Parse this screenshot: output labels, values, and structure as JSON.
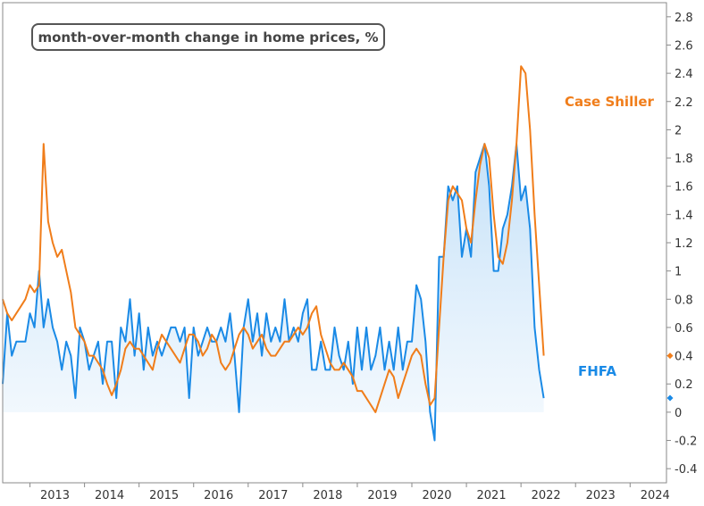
{
  "chart_data": {
    "type": "line",
    "title": "month-over-month change in home prices, %",
    "xlabel": "",
    "ylabel": "",
    "x_ticks": [
      "2013",
      "2014",
      "2015",
      "2016",
      "2017",
      "2018",
      "2019",
      "2020",
      "2021",
      "2022",
      "2023",
      "2024"
    ],
    "y_ticks": [
      "2.8",
      "2.6",
      "2.4",
      "2.2",
      "2",
      "1.8",
      "1.6",
      "1.4",
      "1.2",
      "1",
      "0.8",
      "0.6",
      "0.4",
      "0.2",
      "0",
      "-0.2",
      "-0.4"
    ],
    "xlim": [
      "2012-07",
      "2024-09"
    ],
    "ylim": [
      -0.5,
      2.9
    ],
    "grid": false,
    "series": [
      {
        "name": "Case Shiller",
        "color": "#f07d1a",
        "last_value_marker": 0.4,
        "points": [
          [
            "2012-07",
            0.8
          ],
          [
            "2012-08",
            0.7
          ],
          [
            "2012-09",
            0.65
          ],
          [
            "2012-10",
            0.7
          ],
          [
            "2012-11",
            0.75
          ],
          [
            "2012-12",
            0.8
          ],
          [
            "2013-01",
            0.9
          ],
          [
            "2013-02",
            0.85
          ],
          [
            "2013-03",
            0.9
          ],
          [
            "2013-04",
            1.9
          ],
          [
            "2013-05",
            1.35
          ],
          [
            "2013-06",
            1.2
          ],
          [
            "2013-07",
            1.1
          ],
          [
            "2013-08",
            1.15
          ],
          [
            "2013-09",
            1.0
          ],
          [
            "2013-10",
            0.85
          ],
          [
            "2013-11",
            0.6
          ],
          [
            "2013-12",
            0.55
          ],
          [
            "2014-01",
            0.5
          ],
          [
            "2014-02",
            0.4
          ],
          [
            "2014-03",
            0.4
          ],
          [
            "2014-04",
            0.35
          ],
          [
            "2014-05",
            0.3
          ],
          [
            "2014-06",
            0.2
          ],
          [
            "2014-07",
            0.12
          ],
          [
            "2014-08",
            0.2
          ],
          [
            "2014-09",
            0.3
          ],
          [
            "2014-10",
            0.45
          ],
          [
            "2014-11",
            0.5
          ],
          [
            "2014-12",
            0.45
          ],
          [
            "2015-01",
            0.45
          ],
          [
            "2015-02",
            0.4
          ],
          [
            "2015-03",
            0.35
          ],
          [
            "2015-04",
            0.3
          ],
          [
            "2015-05",
            0.45
          ],
          [
            "2015-06",
            0.55
          ],
          [
            "2015-07",
            0.5
          ],
          [
            "2015-08",
            0.45
          ],
          [
            "2015-09",
            0.4
          ],
          [
            "2015-10",
            0.35
          ],
          [
            "2015-11",
            0.45
          ],
          [
            "2015-12",
            0.55
          ],
          [
            "2016-01",
            0.55
          ],
          [
            "2016-02",
            0.5
          ],
          [
            "2016-03",
            0.4
          ],
          [
            "2016-04",
            0.45
          ],
          [
            "2016-05",
            0.55
          ],
          [
            "2016-06",
            0.5
          ],
          [
            "2016-07",
            0.35
          ],
          [
            "2016-08",
            0.3
          ],
          [
            "2016-09",
            0.35
          ],
          [
            "2016-10",
            0.45
          ],
          [
            "2016-11",
            0.55
          ],
          [
            "2016-12",
            0.6
          ],
          [
            "2017-01",
            0.55
          ],
          [
            "2017-02",
            0.45
          ],
          [
            "2017-03",
            0.5
          ],
          [
            "2017-04",
            0.55
          ],
          [
            "2017-05",
            0.45
          ],
          [
            "2017-06",
            0.4
          ],
          [
            "2017-07",
            0.4
          ],
          [
            "2017-08",
            0.45
          ],
          [
            "2017-09",
            0.5
          ],
          [
            "2017-10",
            0.5
          ],
          [
            "2017-11",
            0.55
          ],
          [
            "2017-12",
            0.6
          ],
          [
            "2018-01",
            0.55
          ],
          [
            "2018-02",
            0.6
          ],
          [
            "2018-03",
            0.7
          ],
          [
            "2018-04",
            0.75
          ],
          [
            "2018-05",
            0.55
          ],
          [
            "2018-06",
            0.45
          ],
          [
            "2018-07",
            0.35
          ],
          [
            "2018-08",
            0.3
          ],
          [
            "2018-09",
            0.3
          ],
          [
            "2018-10",
            0.35
          ],
          [
            "2018-11",
            0.3
          ],
          [
            "2018-12",
            0.25
          ],
          [
            "2019-01",
            0.15
          ],
          [
            "2019-02",
            0.15
          ],
          [
            "2019-03",
            0.1
          ],
          [
            "2019-04",
            0.05
          ],
          [
            "2019-05",
            0.0
          ],
          [
            "2019-06",
            0.1
          ],
          [
            "2019-07",
            0.2
          ],
          [
            "2019-08",
            0.3
          ],
          [
            "2019-09",
            0.25
          ],
          [
            "2019-10",
            0.1
          ],
          [
            "2019-11",
            0.2
          ],
          [
            "2019-12",
            0.3
          ],
          [
            "2020-01",
            0.4
          ],
          [
            "2020-02",
            0.45
          ],
          [
            "2020-03",
            0.4
          ],
          [
            "2020-04",
            0.2
          ],
          [
            "2020-05",
            0.05
          ],
          [
            "2020-06",
            0.1
          ],
          [
            "2020-07",
            0.6
          ],
          [
            "2020-08",
            1.1
          ],
          [
            "2020-09",
            1.5
          ],
          [
            "2020-10",
            1.6
          ],
          [
            "2020-11",
            1.55
          ],
          [
            "2020-12",
            1.5
          ],
          [
            "2021-01",
            1.3
          ],
          [
            "2021-02",
            1.2
          ],
          [
            "2021-03",
            1.5
          ],
          [
            "2021-04",
            1.75
          ],
          [
            "2021-05",
            1.9
          ],
          [
            "2021-06",
            1.8
          ],
          [
            "2021-07",
            1.4
          ],
          [
            "2021-08",
            1.1
          ],
          [
            "2021-09",
            1.05
          ],
          [
            "2021-10",
            1.2
          ],
          [
            "2021-11",
            1.5
          ],
          [
            "2021-12",
            1.9
          ],
          [
            "2022-01",
            2.45
          ],
          [
            "2022-02",
            2.4
          ],
          [
            "2022-03",
            2.0
          ],
          [
            "2022-04",
            1.4
          ],
          [
            "2022-05",
            0.9
          ],
          [
            "2022-06",
            0.4
          ]
        ]
      },
      {
        "name": "FHFA",
        "color": "#1a8ae6",
        "last_value_marker": 0.1,
        "points": [
          [
            "2012-07",
            0.2
          ],
          [
            "2012-08",
            0.7
          ],
          [
            "2012-09",
            0.4
          ],
          [
            "2012-10",
            0.5
          ],
          [
            "2012-11",
            0.5
          ],
          [
            "2012-12",
            0.5
          ],
          [
            "2013-01",
            0.7
          ],
          [
            "2013-02",
            0.6
          ],
          [
            "2013-03",
            1.0
          ],
          [
            "2013-04",
            0.6
          ],
          [
            "2013-05",
            0.8
          ],
          [
            "2013-06",
            0.6
          ],
          [
            "2013-07",
            0.5
          ],
          [
            "2013-08",
            0.3
          ],
          [
            "2013-09",
            0.5
          ],
          [
            "2013-10",
            0.4
          ],
          [
            "2013-11",
            0.1
          ],
          [
            "2013-12",
            0.6
          ],
          [
            "2014-01",
            0.5
          ],
          [
            "2014-02",
            0.3
          ],
          [
            "2014-03",
            0.4
          ],
          [
            "2014-04",
            0.5
          ],
          [
            "2014-05",
            0.2
          ],
          [
            "2014-06",
            0.5
          ],
          [
            "2014-07",
            0.5
          ],
          [
            "2014-08",
            0.1
          ],
          [
            "2014-09",
            0.6
          ],
          [
            "2014-10",
            0.5
          ],
          [
            "2014-11",
            0.8
          ],
          [
            "2014-12",
            0.4
          ],
          [
            "2015-01",
            0.7
          ],
          [
            "2015-02",
            0.3
          ],
          [
            "2015-03",
            0.6
          ],
          [
            "2015-04",
            0.4
          ],
          [
            "2015-05",
            0.5
          ],
          [
            "2015-06",
            0.4
          ],
          [
            "2015-07",
            0.5
          ],
          [
            "2015-08",
            0.6
          ],
          [
            "2015-09",
            0.6
          ],
          [
            "2015-10",
            0.5
          ],
          [
            "2015-11",
            0.6
          ],
          [
            "2015-12",
            0.1
          ],
          [
            "2016-01",
            0.6
          ],
          [
            "2016-02",
            0.4
          ],
          [
            "2016-03",
            0.5
          ],
          [
            "2016-04",
            0.6
          ],
          [
            "2016-05",
            0.5
          ],
          [
            "2016-06",
            0.5
          ],
          [
            "2016-07",
            0.6
          ],
          [
            "2016-08",
            0.5
          ],
          [
            "2016-09",
            0.7
          ],
          [
            "2016-10",
            0.4
          ],
          [
            "2016-11",
            0.0
          ],
          [
            "2016-12",
            0.6
          ],
          [
            "2017-01",
            0.8
          ],
          [
            "2017-02",
            0.5
          ],
          [
            "2017-03",
            0.7
          ],
          [
            "2017-04",
            0.4
          ],
          [
            "2017-05",
            0.7
          ],
          [
            "2017-06",
            0.5
          ],
          [
            "2017-07",
            0.6
          ],
          [
            "2017-08",
            0.5
          ],
          [
            "2017-09",
            0.8
          ],
          [
            "2017-10",
            0.5
          ],
          [
            "2017-11",
            0.6
          ],
          [
            "2017-12",
            0.5
          ],
          [
            "2018-01",
            0.7
          ],
          [
            "2018-02",
            0.8
          ],
          [
            "2018-03",
            0.3
          ],
          [
            "2018-04",
            0.3
          ],
          [
            "2018-05",
            0.5
          ],
          [
            "2018-06",
            0.3
          ],
          [
            "2018-07",
            0.3
          ],
          [
            "2018-08",
            0.6
          ],
          [
            "2018-09",
            0.4
          ],
          [
            "2018-10",
            0.3
          ],
          [
            "2018-11",
            0.5
          ],
          [
            "2018-12",
            0.2
          ],
          [
            "2019-01",
            0.6
          ],
          [
            "2019-02",
            0.3
          ],
          [
            "2019-03",
            0.6
          ],
          [
            "2019-04",
            0.3
          ],
          [
            "2019-05",
            0.4
          ],
          [
            "2019-06",
            0.6
          ],
          [
            "2019-07",
            0.3
          ],
          [
            "2019-08",
            0.5
          ],
          [
            "2019-09",
            0.3
          ],
          [
            "2019-10",
            0.6
          ],
          [
            "2019-11",
            0.3
          ],
          [
            "2019-12",
            0.5
          ],
          [
            "2020-01",
            0.5
          ],
          [
            "2020-02",
            0.9
          ],
          [
            "2020-03",
            0.8
          ],
          [
            "2020-04",
            0.5
          ],
          [
            "2020-05",
            0.0
          ],
          [
            "2020-06",
            -0.2
          ],
          [
            "2020-07",
            1.1
          ],
          [
            "2020-08",
            1.1
          ],
          [
            "2020-09",
            1.6
          ],
          [
            "2020-10",
            1.5
          ],
          [
            "2020-11",
            1.6
          ],
          [
            "2020-12",
            1.1
          ],
          [
            "2021-01",
            1.3
          ],
          [
            "2021-02",
            1.1
          ],
          [
            "2021-03",
            1.7
          ],
          [
            "2021-04",
            1.8
          ],
          [
            "2021-05",
            1.9
          ],
          [
            "2021-06",
            1.6
          ],
          [
            "2021-07",
            1.0
          ],
          [
            "2021-08",
            1.0
          ],
          [
            "2021-09",
            1.3
          ],
          [
            "2021-10",
            1.4
          ],
          [
            "2021-11",
            1.6
          ],
          [
            "2021-12",
            1.9
          ],
          [
            "2022-01",
            1.5
          ],
          [
            "2022-02",
            1.6
          ],
          [
            "2022-03",
            1.3
          ],
          [
            "2022-04",
            0.6
          ],
          [
            "2022-05",
            0.3
          ],
          [
            "2022-06",
            0.1
          ]
        ]
      }
    ]
  }
}
